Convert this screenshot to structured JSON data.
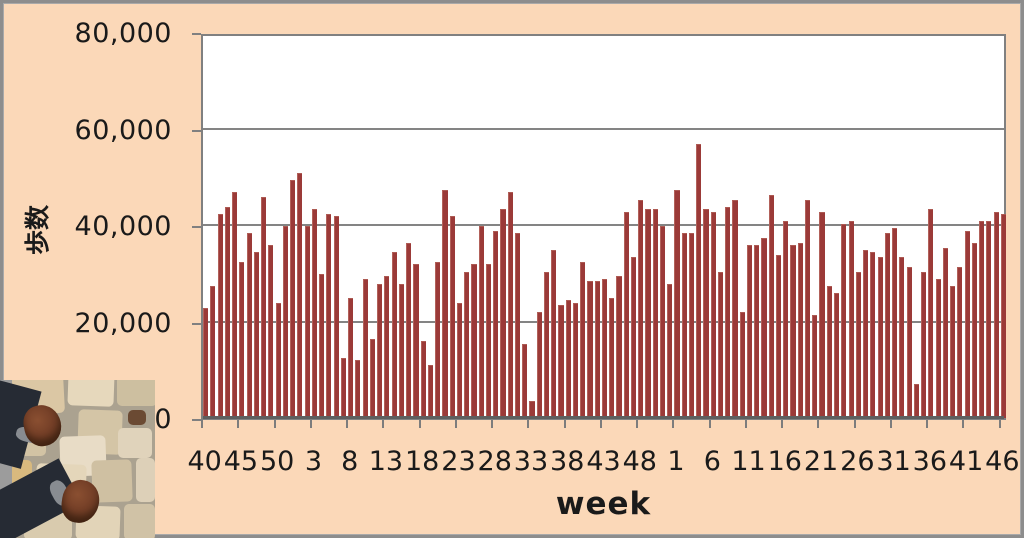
{
  "chart_data": {
    "type": "bar",
    "title": "",
    "ylabel": "歩数",
    "xlabel": "week",
    "ylim": [
      0,
      80000
    ],
    "grid": true,
    "legend_position": "none",
    "bar_color": "#9B3A38",
    "plot_background": "#FFFFFF",
    "page_background": "#FBD8B8",
    "gridline_color": "#808080",
    "ytick_values": [
      0,
      20000,
      40000,
      60000,
      80000
    ],
    "ytick_labels": [
      "0",
      "20,000",
      "40,000",
      "60,000",
      "80,000"
    ],
    "xtick_labels": [
      "40",
      "45",
      "50",
      "3",
      "8",
      "13",
      "18",
      "23",
      "28",
      "33",
      "38",
      "43",
      "48",
      "1",
      "6",
      "11",
      "16",
      "21",
      "26",
      "31",
      "36",
      "41",
      "46"
    ],
    "xtick_every": 5,
    "values": [
      23000,
      27500,
      42500,
      44000,
      47000,
      32500,
      38500,
      34500,
      46000,
      36000,
      24000,
      40000,
      49500,
      51000,
      40000,
      43500,
      30000,
      42500,
      42000,
      12500,
      25000,
      12000,
      29000,
      16500,
      28000,
      29500,
      34500,
      28000,
      36500,
      32000,
      16000,
      11000,
      32500,
      47500,
      42000,
      24000,
      30500,
      32000,
      40000,
      32000,
      39000,
      43500,
      47000,
      38500,
      15500,
      3500,
      22000,
      30500,
      35000,
      23500,
      24500,
      24000,
      32500,
      28500,
      28500,
      29000,
      25000,
      29500,
      43000,
      33500,
      45500,
      43500,
      43500,
      40000,
      28000,
      47500,
      38500,
      38500,
      57000,
      43500,
      43000,
      30500,
      44000,
      45500,
      22000,
      36000,
      36000,
      37500,
      46500,
      34000,
      41000,
      36000,
      36500,
      45500,
      21500,
      43000,
      27500,
      26000,
      40500,
      41000,
      30500,
      35000,
      34500,
      33500,
      38500,
      39500,
      33500,
      31500,
      7000,
      30500,
      43500,
      29000,
      35500,
      27500,
      31500,
      39000,
      36500,
      41000,
      41000,
      43000,
      42500
    ]
  },
  "photo": {
    "alt": "feet in dark jeans and brown shoes standing on beige stone pavement"
  }
}
